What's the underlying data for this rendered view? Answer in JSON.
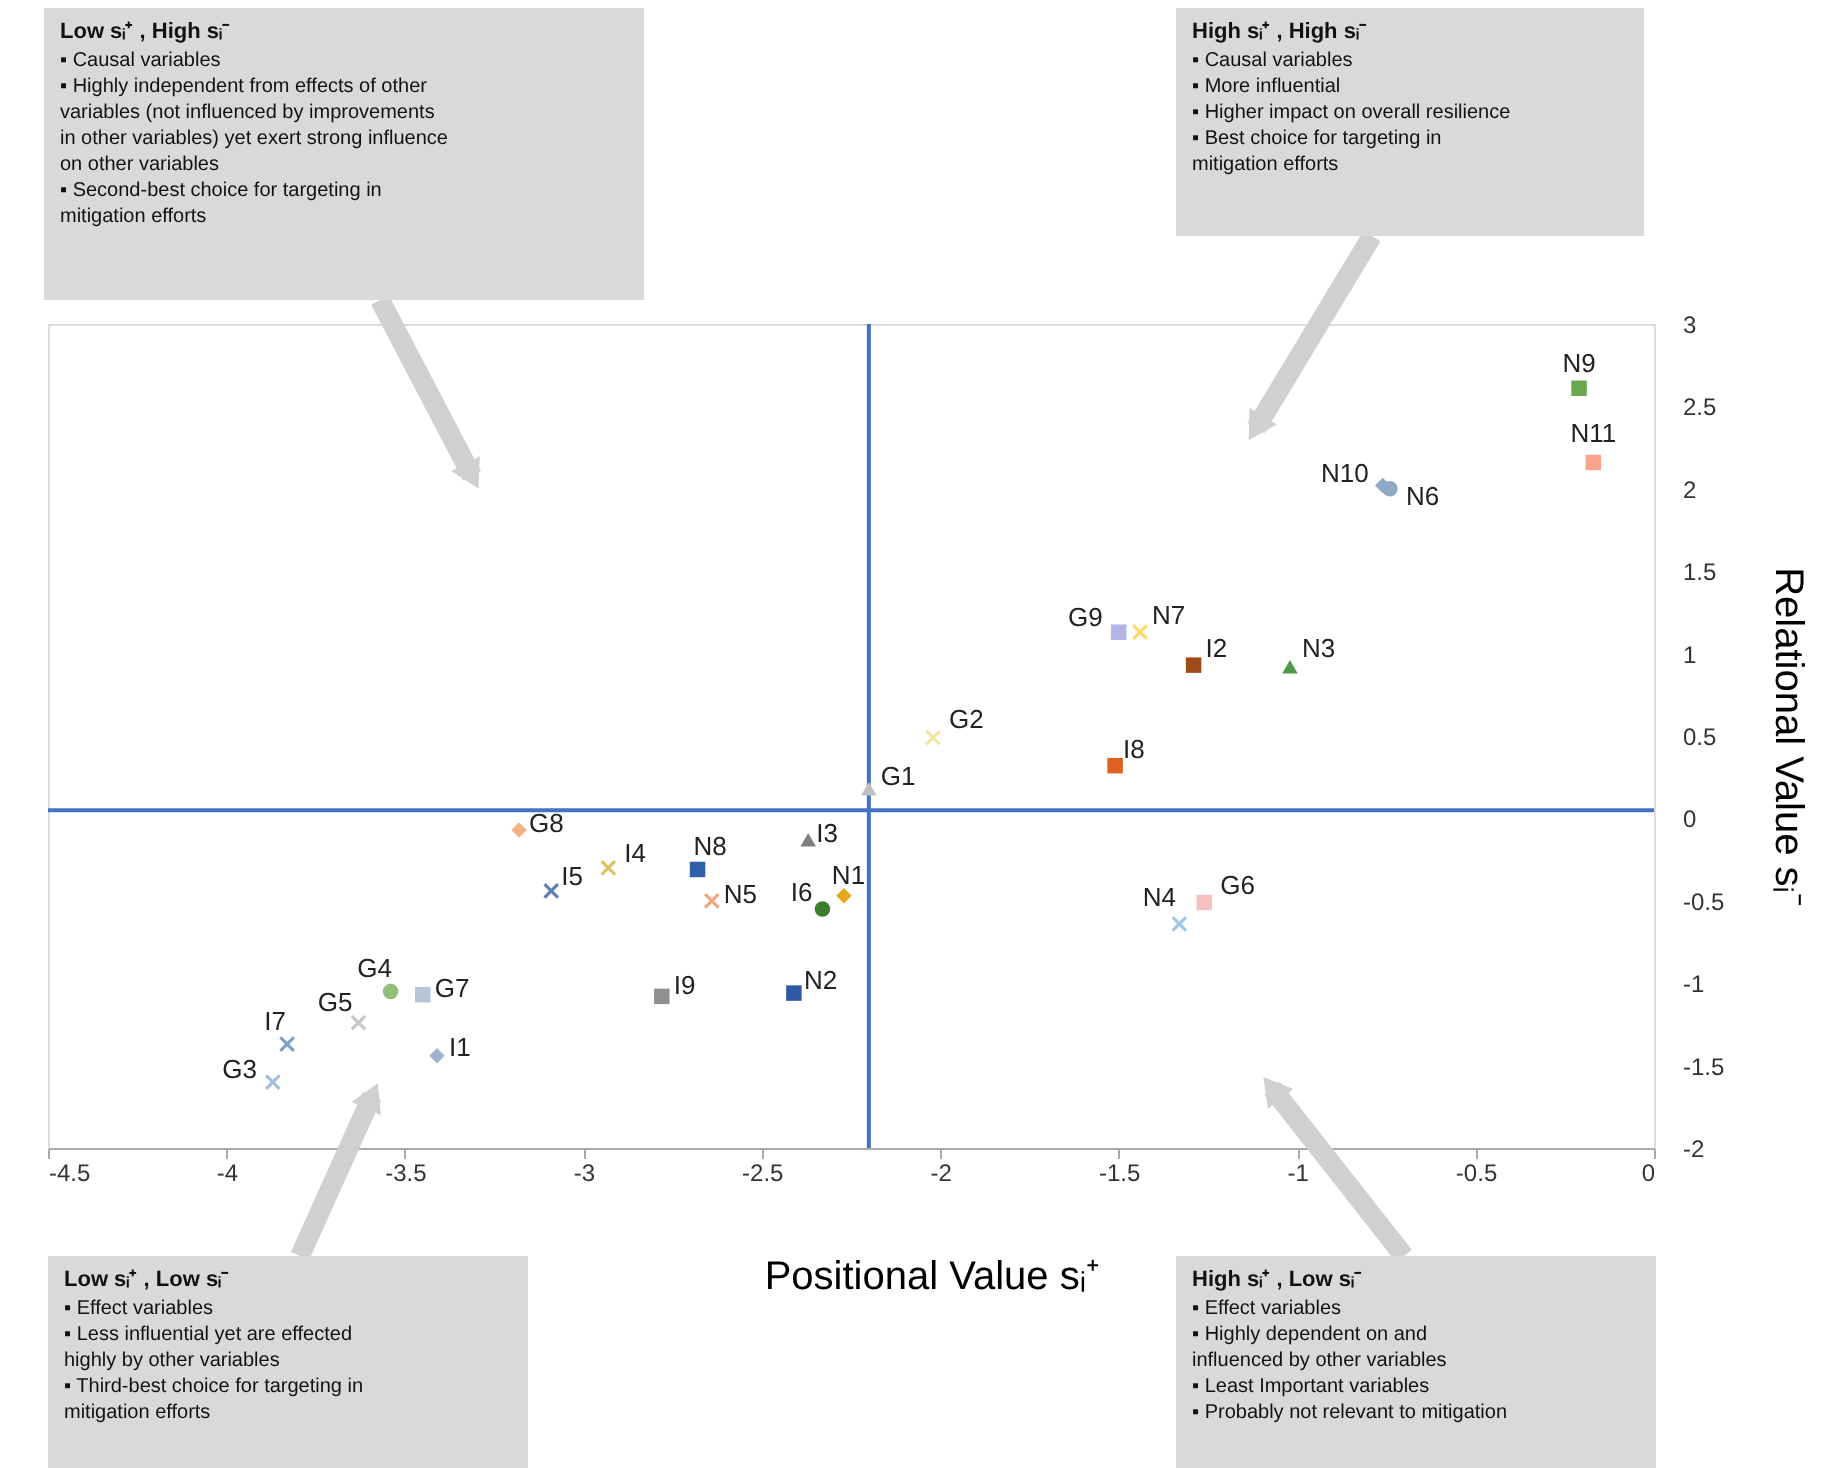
{
  "chart_data": {
    "type": "scatter",
    "xlabel": "Positional Value sᵢ⁺",
    "ylabel": "Relational Value sᵢ⁻",
    "xlim": [
      -4.5,
      0
    ],
    "xticks": [
      -4.5,
      -4,
      -3.5,
      -3,
      -2.5,
      -2,
      -1.5,
      -1,
      -0.5,
      0
    ],
    "ylim": [
      -2,
      3
    ],
    "yticks": [
      -2,
      -1.5,
      -1,
      -0.5,
      0,
      0.5,
      1,
      1.5,
      2,
      2.5,
      3
    ],
    "grid": false,
    "ref_lines": [
      {
        "axis": "x",
        "value": -2.2,
        "color": "#4472c4"
      },
      {
        "axis": "y",
        "value": 0.05,
        "color": "#4472c4"
      }
    ],
    "series": [
      {
        "name": "N9",
        "color": "#6aa84f",
        "marker": "square",
        "x": [
          -0.21
        ],
        "values": [
          2.61
        ]
      },
      {
        "name": "N11",
        "color": "#f8a58c",
        "marker": "square",
        "x": [
          -0.17
        ],
        "values": [
          2.16
        ]
      },
      {
        "name": "N10",
        "color": "#8fa9c4",
        "marker": "diamond",
        "x": [
          -0.76
        ],
        "values": [
          2.02
        ]
      },
      {
        "name": "N6",
        "color": "#8fa9c4",
        "marker": "circle",
        "x": [
          -0.74
        ],
        "values": [
          2.0
        ]
      },
      {
        "name": "G9",
        "color": "#b4b4e6",
        "marker": "square",
        "x": [
          -1.5
        ],
        "values": [
          1.13
        ]
      },
      {
        "name": "N7",
        "color": "#ffd966",
        "marker": "cross",
        "x": [
          -1.44
        ],
        "values": [
          1.13
        ]
      },
      {
        "name": "I2",
        "color": "#9e4a1a",
        "marker": "square",
        "x": [
          -1.29
        ],
        "values": [
          0.93
        ]
      },
      {
        "name": "N3",
        "color": "#4e9a45",
        "marker": "triangle",
        "x": [
          -1.02
        ],
        "values": [
          0.92
        ]
      },
      {
        "name": "G2",
        "color": "#f3e5a0",
        "marker": "cross",
        "x": [
          -2.02
        ],
        "values": [
          0.49
        ]
      },
      {
        "name": "I8",
        "color": "#e06020",
        "marker": "square",
        "x": [
          -1.51
        ],
        "values": [
          0.32
        ]
      },
      {
        "name": "G1",
        "color": "#c0c0c0",
        "marker": "triangle",
        "x": [
          -2.2
        ],
        "values": [
          0.18
        ]
      },
      {
        "name": "G8",
        "color": "#f4b183",
        "marker": "diamond",
        "x": [
          -3.18
        ],
        "values": [
          -0.07
        ]
      },
      {
        "name": "I3",
        "color": "#7f7f7f",
        "marker": "triangle",
        "x": [
          -2.37
        ],
        "values": [
          -0.13
        ]
      },
      {
        "name": "I4",
        "color": "#d6c46b",
        "marker": "cross",
        "x": [
          -2.93
        ],
        "values": [
          -0.3
        ]
      },
      {
        "name": "N8",
        "color": "#2e5fa8",
        "marker": "square",
        "x": [
          -2.68
        ],
        "values": [
          -0.31
        ]
      },
      {
        "name": "I5",
        "color": "#5b7fb5",
        "marker": "cross",
        "x": [
          -3.09
        ],
        "values": [
          -0.44
        ]
      },
      {
        "name": "N5",
        "color": "#f4a582",
        "marker": "cross",
        "x": [
          -2.64
        ],
        "values": [
          -0.5
        ]
      },
      {
        "name": "N1",
        "color": "#e6a817",
        "marker": "diamond",
        "x": [
          -2.27
        ],
        "values": [
          -0.47
        ]
      },
      {
        "name": "I6",
        "color": "#3a7d2a",
        "marker": "circle",
        "x": [
          -2.33
        ],
        "values": [
          -0.55
        ]
      },
      {
        "name": "G4",
        "color": "#8fbf78",
        "marker": "circle",
        "x": [
          -3.54
        ],
        "values": [
          -1.05
        ]
      },
      {
        "name": "G7",
        "color": "#b8c4d8",
        "marker": "square",
        "x": [
          -3.45
        ],
        "values": [
          -1.07
        ]
      },
      {
        "name": "I9",
        "color": "#909090",
        "marker": "square",
        "x": [
          -2.78
        ],
        "values": [
          -1.08
        ]
      },
      {
        "name": "N2",
        "color": "#2f5aa8",
        "marker": "square",
        "x": [
          -2.41
        ],
        "values": [
          -1.06
        ]
      },
      {
        "name": "G5",
        "color": "#c8c8c8",
        "marker": "cross",
        "x": [
          -3.63
        ],
        "values": [
          -1.24
        ]
      },
      {
        "name": "I7",
        "color": "#7fa0c8",
        "marker": "cross",
        "x": [
          -3.83
        ],
        "values": [
          -1.37
        ]
      },
      {
        "name": "I1",
        "color": "#a0b4d0",
        "marker": "diamond",
        "x": [
          -3.41
        ],
        "values": [
          -1.44
        ]
      },
      {
        "name": "G3",
        "color": "#a6bde0",
        "marker": "cross",
        "x": [
          -3.87
        ],
        "values": [
          -1.6
        ]
      },
      {
        "name": "N4",
        "color": "#9ec8e8",
        "marker": "cross",
        "x": [
          -1.33
        ],
        "values": [
          -0.64
        ]
      },
      {
        "name": "G6",
        "color": "#f4c0c0",
        "marker": "square",
        "x": [
          -1.26
        ],
        "values": [
          -0.51
        ]
      }
    ],
    "annotations": [
      "Low sᵢ⁺ , High sᵢ⁻\n▪ Causal variables\n▪ Highly independent from effects of other\n  variables (not influenced by improvements\n  in other variables) yet exert strong influence\n  on other variables\n▪ Second-best choice for targeting in\n  mitigation efforts",
      "High sᵢ⁺ , High sᵢ⁻\n▪ Causal variables\n▪ More influential\n▪ Higher impact on overall resilience\n▪ Best choice for targeting in\n  mitigation efforts",
      "Low sᵢ⁺ , Low sᵢ⁻\n▪ Effect variables\n▪ Less influential yet are effected\n  highly by other variables\n▪ Third-best choice for targeting in\n  mitigation efforts",
      "High sᵢ⁺ , Low sᵢ⁻\n▪ Effect variables\n▪ Highly dependent on and\n  influenced by other variables\n▪ Least Important variables\n▪ Probably not relevant to mitigation"
    ]
  }
}
